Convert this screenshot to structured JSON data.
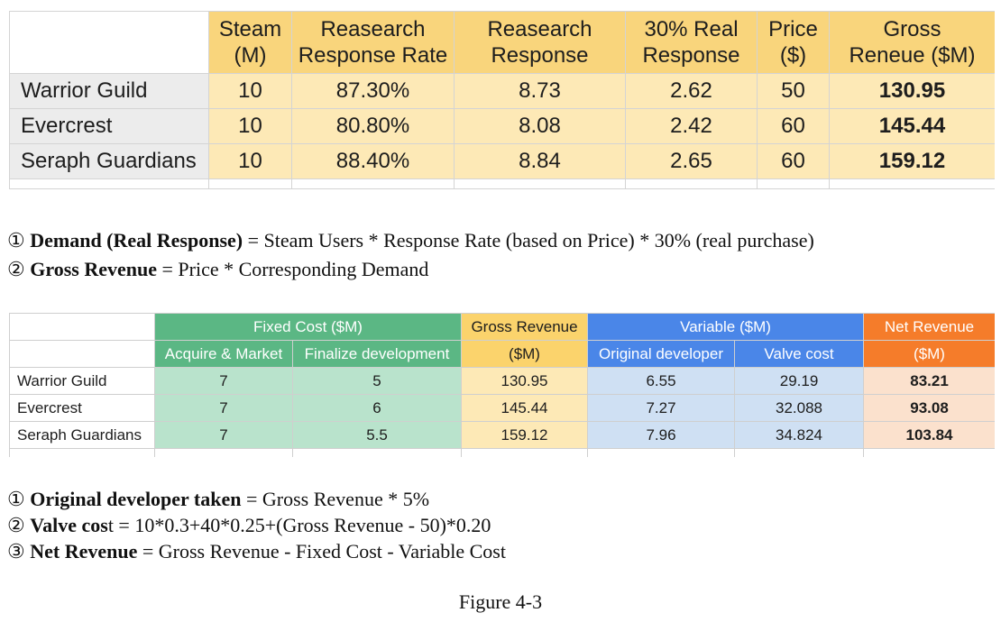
{
  "table1": {
    "headers": [
      {
        "line1": "Steam",
        "line2": "(M)"
      },
      {
        "line1": "Reasearch",
        "line2": "Response Rate"
      },
      {
        "line1": "Reasearch",
        "line2": "Response"
      },
      {
        "line1": "30% Real",
        "line2": "Response"
      },
      {
        "line1": "Price",
        "line2": "($)"
      },
      {
        "line1": "Gross",
        "line2": "Reneue ($M)"
      }
    ],
    "rows": [
      {
        "name": "Warrior Guild",
        "steam": "10",
        "rate": "87.30%",
        "response": "8.73",
        "real": "2.62",
        "price": "50",
        "gross": "130.95"
      },
      {
        "name": "Evercrest",
        "steam": "10",
        "rate": "80.80%",
        "response": "8.08",
        "real": "2.42",
        "price": "60",
        "gross": "145.44"
      },
      {
        "name": "Seraph Guardians",
        "steam": "10",
        "rate": "88.40%",
        "response": "8.84",
        "real": "2.65",
        "price": "60",
        "gross": "159.12"
      }
    ]
  },
  "notes1": [
    {
      "num": "①",
      "bold": "Demand (Real Response)",
      "rest": " = Steam Users * Response Rate (based on Price) * 30% (real purchase)"
    },
    {
      "num": "②",
      "bold": "Gross Revenue",
      "rest": " = Price * Corresponding Demand"
    }
  ],
  "table2": {
    "groups": {
      "fixed": "Fixed Cost ($M)",
      "gross": "Gross Revenue",
      "variable": "Variable ($M)",
      "net": "Net Revenue"
    },
    "subheaders": {
      "acquire": "Acquire & Market",
      "finalize": "Finalize development",
      "gross_unit": "($M)",
      "original": "Original developer",
      "valve": "Valve cost",
      "net_unit": "($M)"
    },
    "rows": [
      {
        "name": "Warrior Guild",
        "acquire": "7",
        "finalize": "5",
        "gross": "130.95",
        "original": "6.55",
        "valve": "29.19",
        "net": "83.21"
      },
      {
        "name": "Evercrest",
        "acquire": "7",
        "finalize": "6",
        "gross": "145.44",
        "original": "7.27",
        "valve": "32.088",
        "net": "93.08"
      },
      {
        "name": "Seraph Guardians",
        "acquire": "7",
        "finalize": "5.5",
        "gross": "159.12",
        "original": "7.96",
        "valve": "34.824",
        "net": "103.84"
      }
    ]
  },
  "notes2": [
    {
      "num": "①",
      "bold": "Original developer taken",
      "rest": " = Gross Revenue * 5%"
    },
    {
      "num": "②",
      "bold": "Valve cos",
      "rest": "t = 10*0.3+40*0.25+(Gross Revenue - 50)*0.20"
    },
    {
      "num": "③",
      "bold": "Net Revenue",
      "rest": " = Gross Revenue - Fixed Cost - Variable Cost"
    }
  ],
  "caption": "Figure 4-3",
  "colors": {
    "header_gold": "#f9d57c",
    "cell_cream": "#fde9b6",
    "fixed_green": "#5bb784",
    "variable_blue": "#4a86e8",
    "net_orange": "#f57c2a"
  }
}
